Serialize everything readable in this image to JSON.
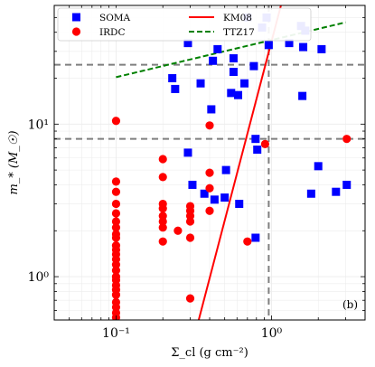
{
  "chart_data": {
    "type": "scatter",
    "xlabel": "Σ_cl (g cm⁻²)",
    "ylabel": "m_* (M_☉)",
    "xscale": "log",
    "yscale": "log",
    "xlim": [
      0.04,
      4.0
    ],
    "ylim": [
      0.52,
      60
    ],
    "xticks": [
      {
        "v": 0.1,
        "label": "10⁻¹"
      },
      {
        "v": 1.0,
        "label": "10⁰"
      }
    ],
    "yticks": [
      {
        "v": 1.0,
        "label": "10⁰"
      },
      {
        "v": 10.0,
        "label": "10¹"
      }
    ],
    "grid": true,
    "legend_position": "top-left",
    "panel_label": "(b)",
    "reference_lines": {
      "horizontal": [
        8.0,
        24.5
      ],
      "vertical": [
        0.96
      ]
    },
    "series": [
      {
        "name": "SOMA",
        "kind": "scatter",
        "marker": "square",
        "color": "#0000ff",
        "points": [
          [
            0.7,
            50
          ],
          [
            0.93,
            50
          ],
          [
            0.87,
            43
          ],
          [
            1.55,
            44
          ],
          [
            1.65,
            41
          ],
          [
            0.29,
            34
          ],
          [
            1.3,
            34
          ],
          [
            0.96,
            33
          ],
          [
            0.45,
            31
          ],
          [
            2.1,
            31
          ],
          [
            1.6,
            32
          ],
          [
            0.57,
            27
          ],
          [
            0.42,
            26
          ],
          [
            0.77,
            24
          ],
          [
            0.57,
            22
          ],
          [
            0.23,
            20
          ],
          [
            0.35,
            18.5
          ],
          [
            0.67,
            18.5
          ],
          [
            0.24,
            17
          ],
          [
            0.55,
            16
          ],
          [
            0.61,
            15.5
          ],
          [
            1.58,
            15.3
          ],
          [
            0.41,
            12.5
          ],
          [
            0.79,
            8.0
          ],
          [
            0.81,
            6.8
          ],
          [
            0.29,
            6.5
          ],
          [
            2.0,
            5.3
          ],
          [
            0.51,
            5.0
          ],
          [
            0.31,
            4.0
          ],
          [
            1.8,
            3.5
          ],
          [
            2.6,
            3.6
          ],
          [
            3.05,
            4.0
          ],
          [
            0.37,
            3.5
          ],
          [
            0.43,
            3.2
          ],
          [
            0.5,
            3.3
          ],
          [
            0.62,
            3.0
          ],
          [
            0.79,
            1.8
          ]
        ]
      },
      {
        "name": "IRDC",
        "kind": "scatter",
        "marker": "circle",
        "color": "#ff0000",
        "points": [
          [
            0.1,
            10.5
          ],
          [
            0.4,
            9.8
          ],
          [
            0.91,
            7.4
          ],
          [
            3.05,
            8.0
          ],
          [
            0.2,
            5.9
          ],
          [
            0.4,
            4.8
          ],
          [
            0.2,
            4.5
          ],
          [
            0.1,
            4.2
          ],
          [
            0.4,
            3.8
          ],
          [
            0.1,
            3.6
          ],
          [
            0.2,
            3.0
          ],
          [
            0.3,
            2.9
          ],
          [
            0.1,
            3.0
          ],
          [
            0.2,
            2.8
          ],
          [
            0.3,
            2.7
          ],
          [
            0.4,
            2.7
          ],
          [
            0.1,
            2.6
          ],
          [
            0.2,
            2.5
          ],
          [
            0.3,
            2.5
          ],
          [
            0.1,
            2.3
          ],
          [
            0.2,
            2.3
          ],
          [
            0.3,
            2.3
          ],
          [
            0.1,
            2.1
          ],
          [
            0.2,
            2.1
          ],
          [
            0.1,
            1.9
          ],
          [
            0.25,
            2.0
          ],
          [
            0.1,
            1.8
          ],
          [
            0.3,
            1.8
          ],
          [
            0.1,
            1.6
          ],
          [
            0.2,
            1.7
          ],
          [
            0.7,
            1.7
          ],
          [
            0.1,
            1.5
          ],
          [
            0.1,
            1.4
          ],
          [
            0.1,
            1.3
          ],
          [
            0.1,
            1.2
          ],
          [
            0.1,
            1.1
          ],
          [
            0.1,
            1.0
          ],
          [
            0.1,
            0.95
          ],
          [
            0.1,
            0.88
          ],
          [
            0.1,
            0.82
          ],
          [
            0.1,
            0.76
          ],
          [
            0.1,
            0.68
          ],
          [
            0.1,
            0.63
          ],
          [
            0.1,
            0.58
          ],
          [
            0.1,
            0.54
          ],
          [
            0.3,
            0.72
          ]
        ]
      },
      {
        "name": "KM08",
        "kind": "line",
        "style": "solid",
        "color": "#ff0000",
        "points": [
          [
            0.34,
            0.52
          ],
          [
            1.15,
            60
          ]
        ]
      },
      {
        "name": "TTZ17",
        "kind": "line",
        "style": "dashed",
        "color": "#008000",
        "points": [
          [
            0.1,
            20.3
          ],
          [
            3.0,
            46.5
          ]
        ]
      }
    ]
  }
}
